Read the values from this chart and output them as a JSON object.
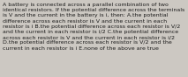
{
  "text": "A battery is connected across a parallel combination of two identical resistors. If the potential difference across the terminals is V and the current in the battery is i, then: A.the potential difference across each resistor is V and the current in each resistor is i B.the potential difference across each resistor is V/2 and the current in each resistor is i/2 C.the potential difference across each resistor is V and the current in each resistor is i/2 D.the potential difference across each resistor is V/2 and the current in each resistor is i E.none of the above are true",
  "background_color": "#ccc8c2",
  "text_color": "#1a1a1a",
  "font_size": 4.5,
  "fig_width": 2.13,
  "fig_height": 0.88,
  "dpi": 100
}
